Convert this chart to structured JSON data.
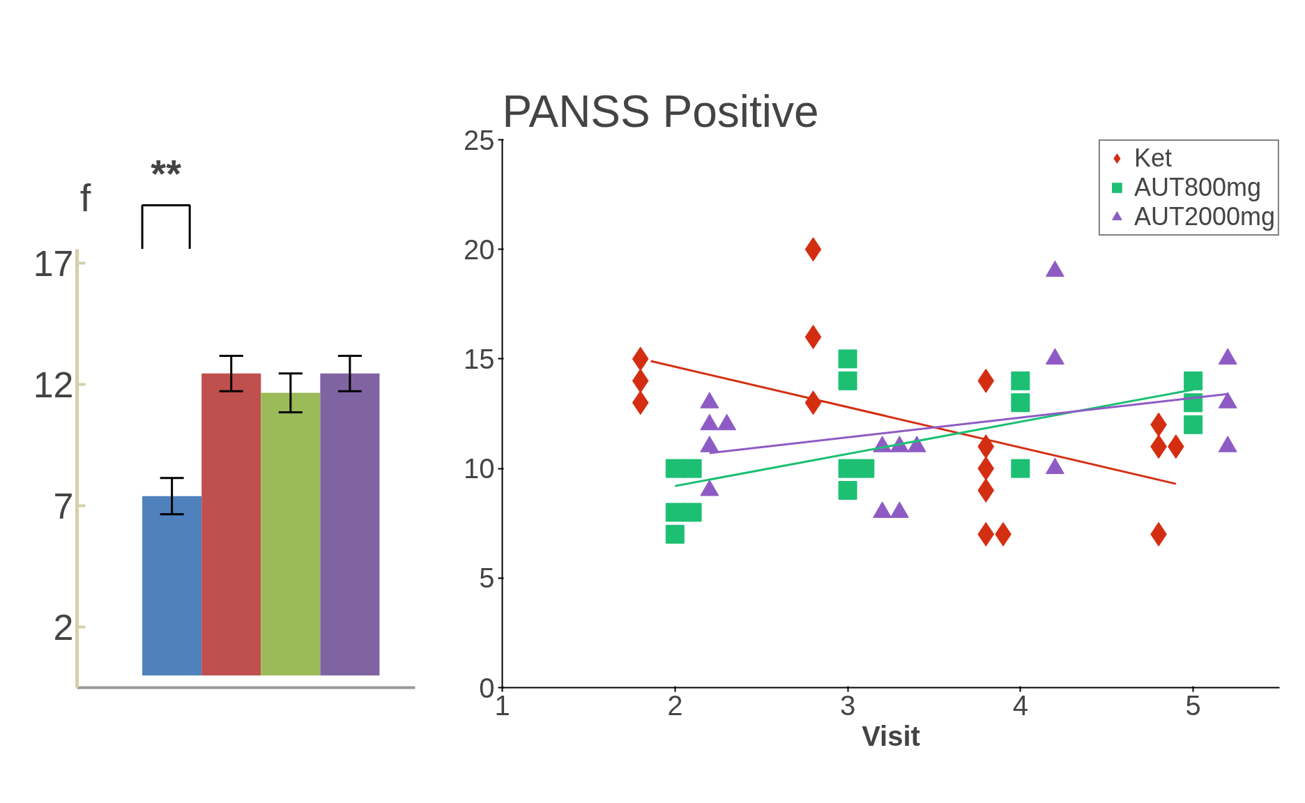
{
  "chart_data": [
    {
      "type": "bar",
      "categories": [
        null,
        null,
        null,
        null
      ],
      "values": [
        7.4,
        12.46,
        11.66,
        12.46
      ],
      "colors": [
        "#4f81bd",
        "#c0504d",
        "#9bbb59",
        "#8064a2"
      ],
      "errors": [
        0.75,
        0.73,
        0.8,
        0.73
      ],
      "ylim": [
        -0.5,
        17.6
      ],
      "yticks": [
        2,
        7,
        12,
        17
      ],
      "grid": false,
      "annotations": [
        "f",
        "**"
      ]
    },
    {
      "type": "scatter",
      "title": "PANSS Positive",
      "xlabel": "Visit",
      "xlim": [
        1,
        5.5
      ],
      "ylim": [
        0,
        25
      ],
      "xticks": [
        1,
        2,
        3,
        4,
        5
      ],
      "yticks": [
        0,
        5,
        10,
        15,
        20,
        25
      ],
      "grid": false,
      "legend": "top right",
      "series": [
        {
          "name": "Ket",
          "color": "#d42e12",
          "marker": "diamond",
          "x": [
            1.8,
            1.8,
            1.8,
            2.8,
            2.8,
            2.8,
            3.8,
            3.8,
            3.8,
            3.8,
            3.8,
            3.9,
            4.8,
            4.8,
            4.8,
            4.9
          ],
          "values": [
            15,
            14,
            13,
            20,
            16,
            13,
            14,
            11,
            10,
            9,
            7,
            7,
            12,
            11,
            7,
            11
          ]
        },
        {
          "name": "AUT800mg",
          "color": "#1dbf73",
          "marker": "square",
          "x": [
            2,
            2,
            2,
            2.1,
            2.1,
            3,
            3,
            3,
            3,
            3.1,
            4,
            4,
            4,
            5,
            5,
            5
          ],
          "values": [
            10,
            8,
            7,
            10,
            8,
            15,
            14,
            10,
            9,
            10,
            14,
            13,
            10,
            14,
            13,
            12
          ]
        },
        {
          "name": "AUT2000mg",
          "color": "#8e5bc4",
          "marker": "triangle",
          "x": [
            2.2,
            2.2,
            2.2,
            2.2,
            2.3,
            3.2,
            3.2,
            3.3,
            3.3,
            3.4,
            4.2,
            4.2,
            4.2,
            5.2,
            5.2,
            5.2
          ],
          "values": [
            13,
            12,
            11,
            9,
            12,
            11,
            8,
            11,
            8,
            11,
            19,
            15,
            10,
            15,
            13,
            11
          ]
        },
        {
          "type": "line",
          "color": "#d42e12",
          "x": [
            1.86,
            4.9
          ],
          "values": [
            14.9,
            9.3
          ]
        },
        {
          "type": "line",
          "color": "#1dbf73",
          "x": [
            2.0,
            5.0
          ],
          "values": [
            9.2,
            13.6
          ]
        },
        {
          "type": "line",
          "color": "#8e5bc4",
          "x": [
            2.2,
            5.2
          ],
          "values": [
            10.7,
            13.4
          ]
        }
      ]
    }
  ]
}
